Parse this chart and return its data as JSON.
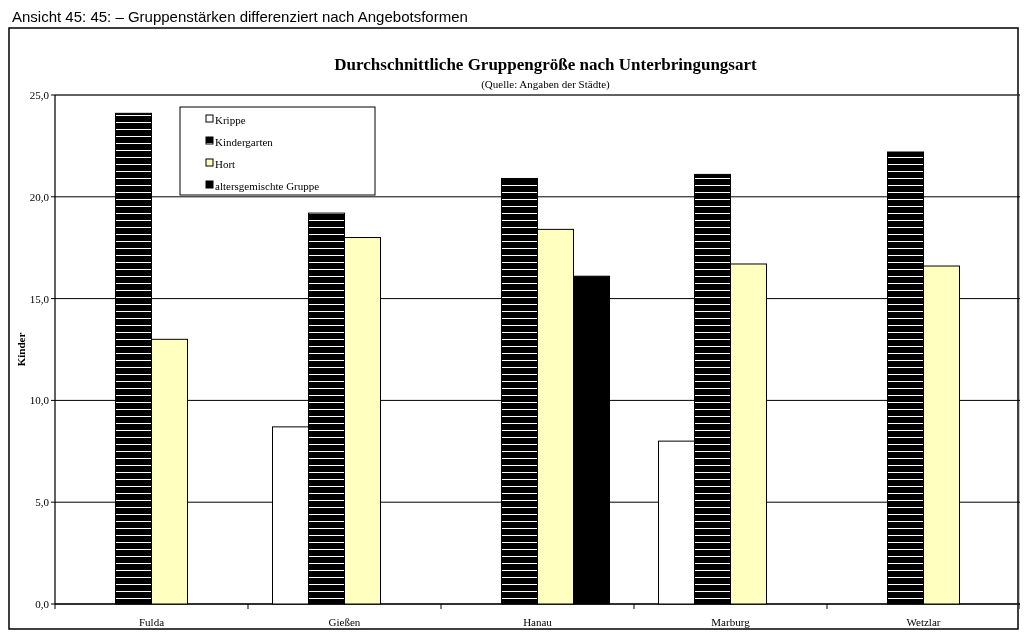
{
  "chart_data": {
    "type": "bar",
    "title": "Durchschnittliche Gruppengröße nach Unterbringungsart",
    "subtitle": "(Quelle: Angaben der Städte)",
    "ylabel": "Kinder",
    "annotations": [
      "Ansicht 45: 45: – Gruppenstärken differenziert nach Angebotsformen"
    ],
    "categories": [
      "Fulda",
      "Gießen",
      "Hanau",
      "Marburg",
      "Wetzlar"
    ],
    "series": [
      {
        "name": "Krippe",
        "color": "#ffffff",
        "values": [
          null,
          8.7,
          null,
          8.0,
          null
        ]
      },
      {
        "name": "Kindergarten",
        "color": "#000000",
        "values": [
          24.1,
          19.2,
          20.9,
          21.1,
          22.2
        ]
      },
      {
        "name": "Hort",
        "color": "#ffffc0",
        "values": [
          13.0,
          18.0,
          18.4,
          16.7,
          16.6
        ]
      },
      {
        "name": "altersgemischte Gruppe",
        "color": "#000000",
        "values": [
          null,
          null,
          16.1,
          null,
          null
        ]
      }
    ],
    "ylim": [
      0,
      25
    ],
    "yticks": [
      {
        "value": 0,
        "label": "0,0"
      },
      {
        "value": 5,
        "label": "5,0"
      },
      {
        "value": 10,
        "label": "10,0"
      },
      {
        "value": 15,
        "label": "15,0"
      },
      {
        "value": 20,
        "label": "20,0"
      },
      {
        "value": 25,
        "label": "25,0"
      }
    ],
    "grid": "y",
    "legend": "top left"
  }
}
